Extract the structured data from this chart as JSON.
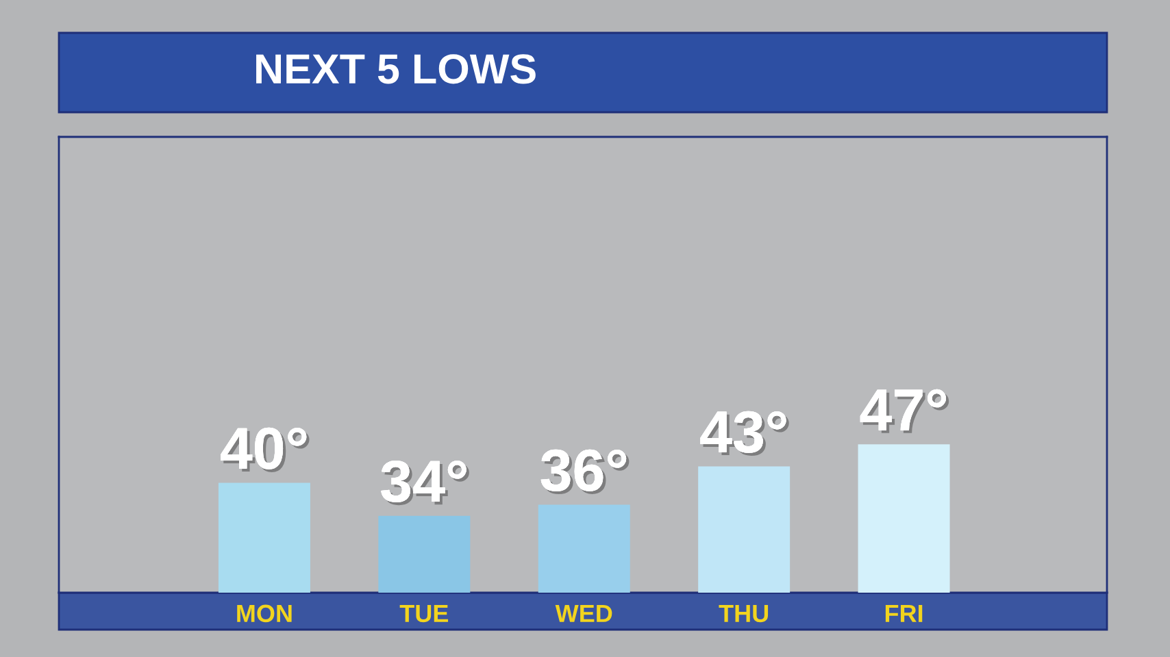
{
  "chart_data": {
    "type": "bar",
    "title": "NEXT 5 LOWS",
    "categories": [
      "MON",
      "TUE",
      "WED",
      "THU",
      "FRI"
    ],
    "values": [
      40,
      34,
      36,
      43,
      47
    ],
    "value_labels": [
      "40°",
      "34°",
      "36°",
      "43°",
      "47°"
    ],
    "colors": [
      "#a8dcf0",
      "#8ac6e6",
      "#98cfec",
      "#c0e6f7",
      "#d4f1fb"
    ],
    "ylim": [
      20,
      103
    ],
    "tick_labels": "x"
  }
}
